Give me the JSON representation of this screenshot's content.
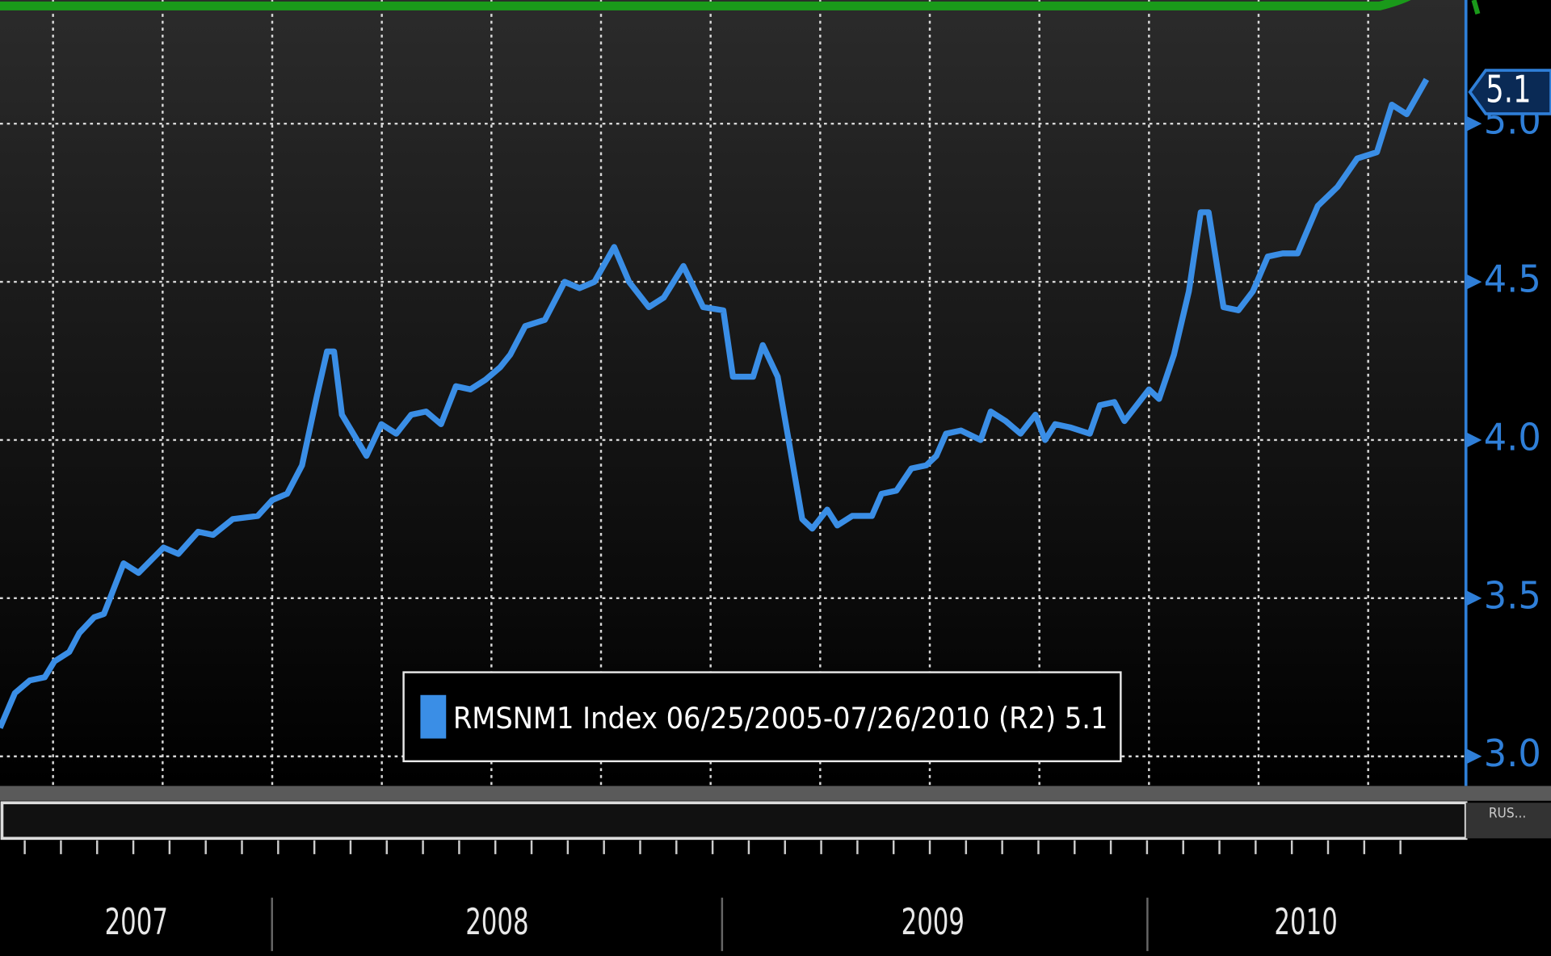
{
  "chart_data": {
    "type": "line",
    "x": [
      2007.379,
      2007.413,
      2007.447,
      2007.481,
      2007.503,
      2007.537,
      2007.56,
      2007.594,
      2007.616,
      2007.661,
      2007.695,
      2007.752,
      2007.786,
      2007.831,
      2007.865,
      2007.91,
      2007.967,
      2008.0,
      2008.034,
      2008.068,
      2008.102,
      2008.125,
      2008.141,
      2008.159,
      2008.215,
      2008.249,
      2008.283,
      2008.317,
      2008.351,
      2008.385,
      2008.419,
      2008.452,
      2008.486,
      2008.52,
      2008.543,
      2008.577,
      2008.622,
      2008.667,
      2008.701,
      2008.735,
      2008.78,
      2008.814,
      2008.859,
      2008.893,
      2008.938,
      2008.983,
      2009.029,
      2009.051,
      2009.097,
      2009.119,
      2009.153,
      2009.209,
      2009.232,
      2009.266,
      2009.289,
      2009.323,
      2009.368,
      2009.39,
      2009.424,
      2009.458,
      2009.492,
      2009.515,
      2009.537,
      2009.571,
      2009.616,
      2009.639,
      2009.673,
      2009.707,
      2009.741,
      2009.763,
      2009.786,
      2009.82,
      2009.865,
      2009.888,
      2009.921,
      2009.944,
      2010.0,
      2010.023,
      2010.057,
      2010.091,
      2010.118,
      2010.136,
      2010.17,
      2010.204,
      2010.237,
      2010.271,
      2010.305,
      2010.339,
      2010.385,
      2010.43,
      2010.475,
      2010.52,
      2010.554,
      2010.588,
      2010.633
    ],
    "series": [
      {
        "name": "RMSNM1 Index 06/25/2005-07/26/2010 (R2) 5.1",
        "color": "#3a8ee6",
        "values": [
          3.09,
          3.2,
          3.24,
          3.25,
          3.3,
          3.33,
          3.39,
          3.44,
          3.45,
          3.61,
          3.58,
          3.66,
          3.64,
          3.71,
          3.7,
          3.75,
          3.76,
          3.81,
          3.83,
          3.92,
          4.14,
          4.28,
          4.28,
          4.08,
          3.95,
          4.05,
          4.02,
          4.08,
          4.09,
          4.05,
          4.17,
          4.16,
          4.19,
          4.23,
          4.27,
          4.36,
          4.38,
          4.5,
          4.48,
          4.5,
          4.61,
          4.5,
          4.42,
          4.45,
          4.55,
          4.42,
          4.41,
          4.2,
          4.2,
          4.3,
          4.2,
          3.75,
          3.72,
          3.78,
          3.73,
          3.76,
          3.76,
          3.83,
          3.84,
          3.91,
          3.92,
          3.95,
          4.02,
          4.03,
          4.0,
          4.09,
          4.06,
          4.02,
          4.08,
          4.0,
          4.05,
          4.04,
          4.02,
          4.11,
          4.12,
          4.06,
          4.16,
          4.13,
          4.27,
          4.47,
          4.72,
          4.72,
          4.42,
          4.41,
          4.47,
          4.58,
          4.59,
          4.59,
          4.74,
          4.8,
          4.89,
          4.91,
          5.06,
          5.03,
          5.14
        ]
      }
    ],
    "xlim": [
      2007.379,
      2010.723
    ],
    "xticks": [
      {
        "value": 2007.69,
        "label": "2007"
      },
      {
        "value": 2008.513,
        "label": "2008"
      },
      {
        "value": 2009.507,
        "label": "2009"
      },
      {
        "value": 2010.358,
        "label": "2010"
      }
    ],
    "xgrid": [
      2007.5,
      2007.75,
      2008.0,
      2008.25,
      2008.5,
      2008.75,
      2009.0,
      2009.25,
      2009.5,
      2009.75,
      2010.0,
      2010.25,
      2010.5
    ],
    "ylim": [
      2.922,
      5.391
    ],
    "yticks": [
      {
        "value": 3,
        "label": "3.0"
      },
      {
        "value": 3.5,
        "label": "3.5"
      },
      {
        "value": 4,
        "label": "4.0"
      },
      {
        "value": 4.5,
        "label": "4.5"
      },
      {
        "value": 5,
        "label": "5.0"
      }
    ],
    "y_axis_side": "right",
    "grid": true,
    "last_value_tag": {
      "label": "5.1",
      "value": 5.1
    },
    "corner_text": "RUS..."
  }
}
